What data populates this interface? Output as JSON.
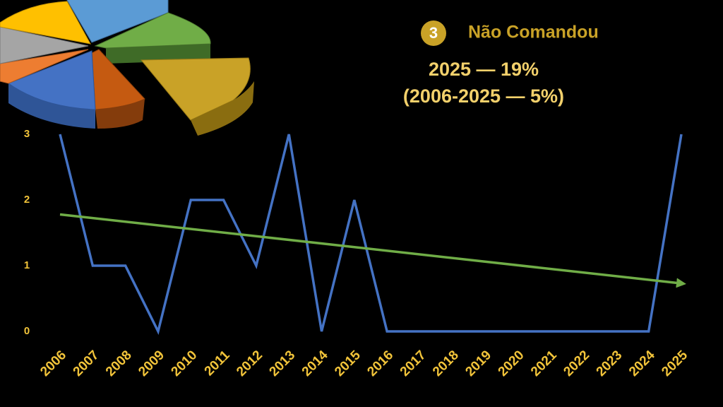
{
  "chart_data": {
    "type": "line",
    "badge": "3",
    "title": "Não Comandou",
    "subtitle": "2025 — 19%",
    "annotation": "(2006-2025 — 5%)",
    "categories": [
      "2006",
      "2007",
      "2008",
      "2009",
      "2010",
      "2011",
      "2012",
      "2013",
      "2014",
      "2015",
      "2016",
      "2017",
      "2018",
      "2019",
      "2020",
      "2021",
      "2022",
      "2023",
      "2024",
      "2025"
    ],
    "series": [
      {
        "color": "#4472c4",
        "values": [
          3,
          1,
          1,
          0,
          2,
          2,
          1,
          3,
          0,
          2,
          0,
          0,
          0,
          0,
          0,
          0,
          0,
          0,
          0,
          3
        ]
      }
    ],
    "trendline": {
      "color": "#70ad47",
      "x": [
        "2006",
        "2025"
      ],
      "values": [
        1.78,
        0.73
      ]
    },
    "ylim": [
      0,
      3
    ],
    "yticks": [
      0,
      1,
      2,
      3
    ],
    "grid": false
  }
}
